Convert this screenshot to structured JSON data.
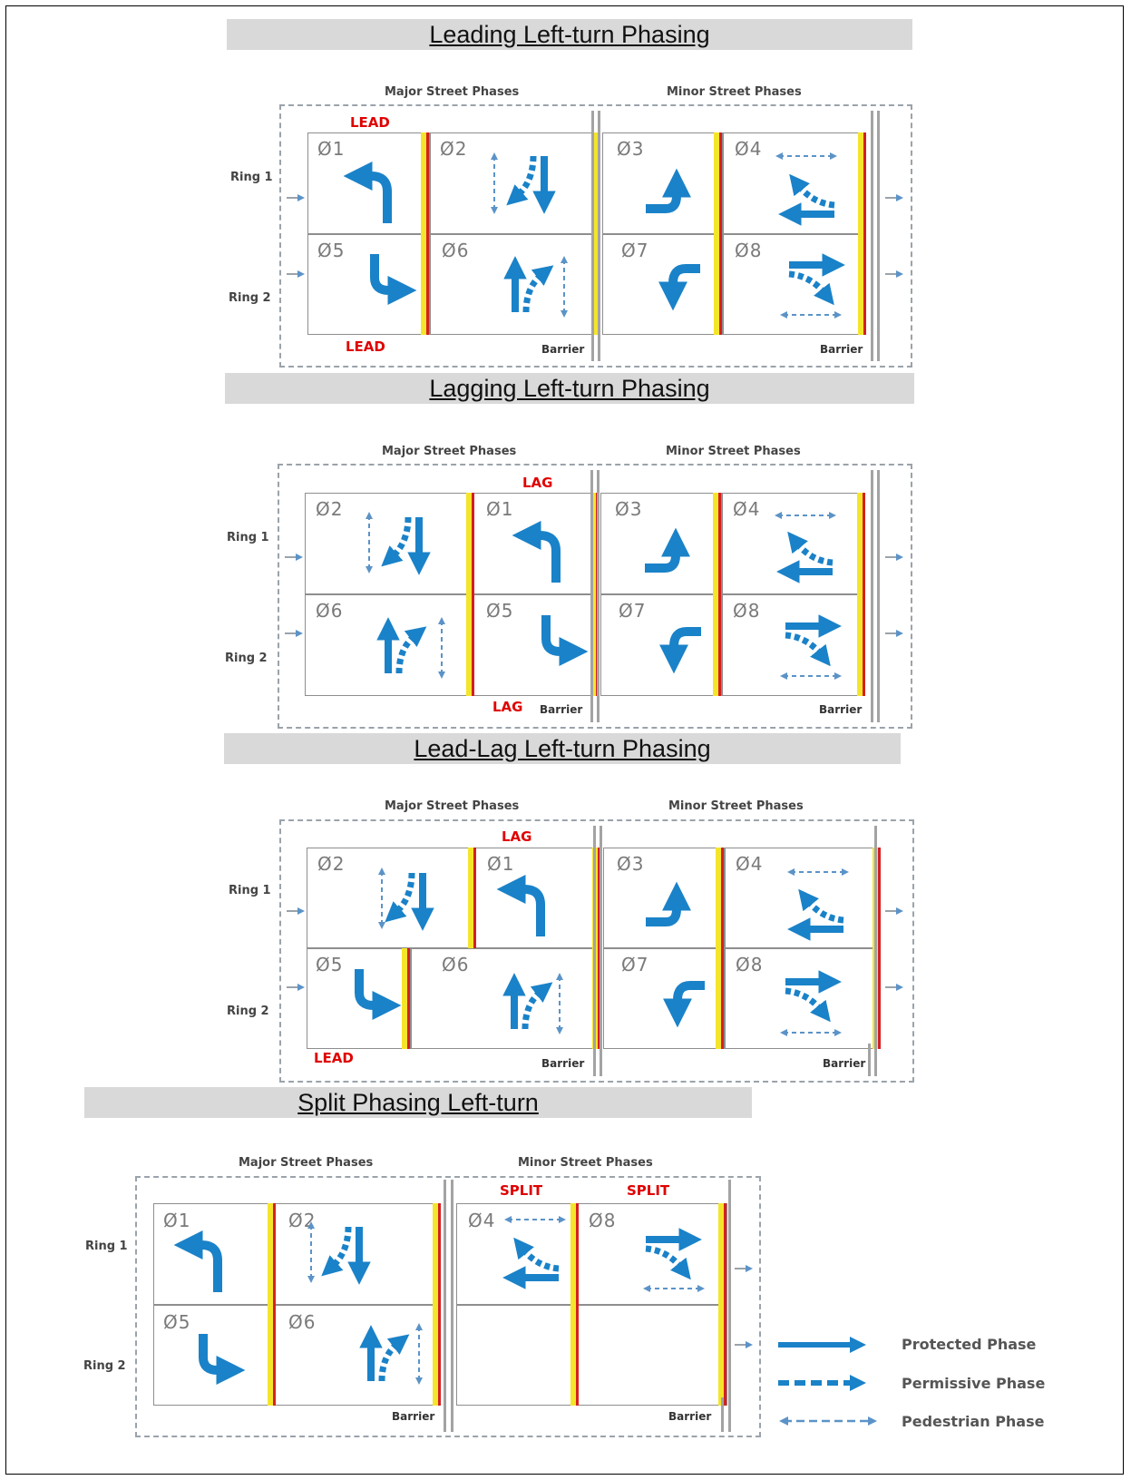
{
  "sections": [
    {
      "title": "Leading Left-turn Phasing",
      "major_label": "Major Street Phases",
      "minor_label": "Minor Street Phases",
      "ring1_label": "Ring 1",
      "ring2_label": "Ring 2",
      "barrier_label": "Barrier",
      "red_top": "LEAD",
      "red_bottom": "LEAD",
      "ring1_phases": [
        "Ø1",
        "Ø2",
        "Ø3",
        "Ø4"
      ],
      "ring2_phases": [
        "Ø5",
        "Ø6",
        "Ø7",
        "Ø8"
      ]
    },
    {
      "title": "Lagging Left-turn Phasing",
      "major_label": "Major Street Phases",
      "minor_label": "Minor Street Phases",
      "ring1_label": "Ring 1",
      "ring2_label": "Ring 2",
      "barrier_label": "Barrier",
      "red_top": "LAG",
      "red_bottom": "LAG",
      "ring1_phases": [
        "Ø2",
        "Ø1",
        "Ø3",
        "Ø4"
      ],
      "ring2_phases": [
        "Ø6",
        "Ø5",
        "Ø7",
        "Ø8"
      ]
    },
    {
      "title": "Lead-Lag Left-turn Phasing",
      "major_label": "Major Street Phases",
      "minor_label": "Minor Street Phases",
      "ring1_label": "Ring 1",
      "ring2_label": "Ring 2",
      "barrier_label": "Barrier",
      "red_top": "LAG",
      "red_bottom": "LEAD",
      "ring1_phases": [
        "Ø2",
        "Ø1",
        "Ø3",
        "Ø4"
      ],
      "ring2_phases": [
        "Ø5",
        "Ø6",
        "Ø7",
        "Ø8"
      ]
    },
    {
      "title": "Split Phasing Left-turn",
      "major_label": "Major Street Phases",
      "minor_label": "Minor Street Phases",
      "ring1_label": "Ring 1",
      "ring2_label": "Ring 2",
      "barrier_label": "Barrier",
      "red_top": "SPLIT",
      "red_top2": "SPLIT",
      "ring1_phases": [
        "Ø1",
        "Ø2",
        "Ø4",
        "Ø8"
      ],
      "ring2_phases": [
        "Ø5",
        "Ø6"
      ]
    }
  ],
  "legend": {
    "protected": "Protected Phase",
    "permissive": "Permissive Phase",
    "pedestrian": "Pedestrian Phase"
  },
  "colors": {
    "arrow": "#1a82c8",
    "pedestrian": "#5b93c8",
    "yellow": "#f5e52a",
    "red": "#d42020",
    "banner": "#d9d9d9",
    "label_red": "#e00000"
  }
}
